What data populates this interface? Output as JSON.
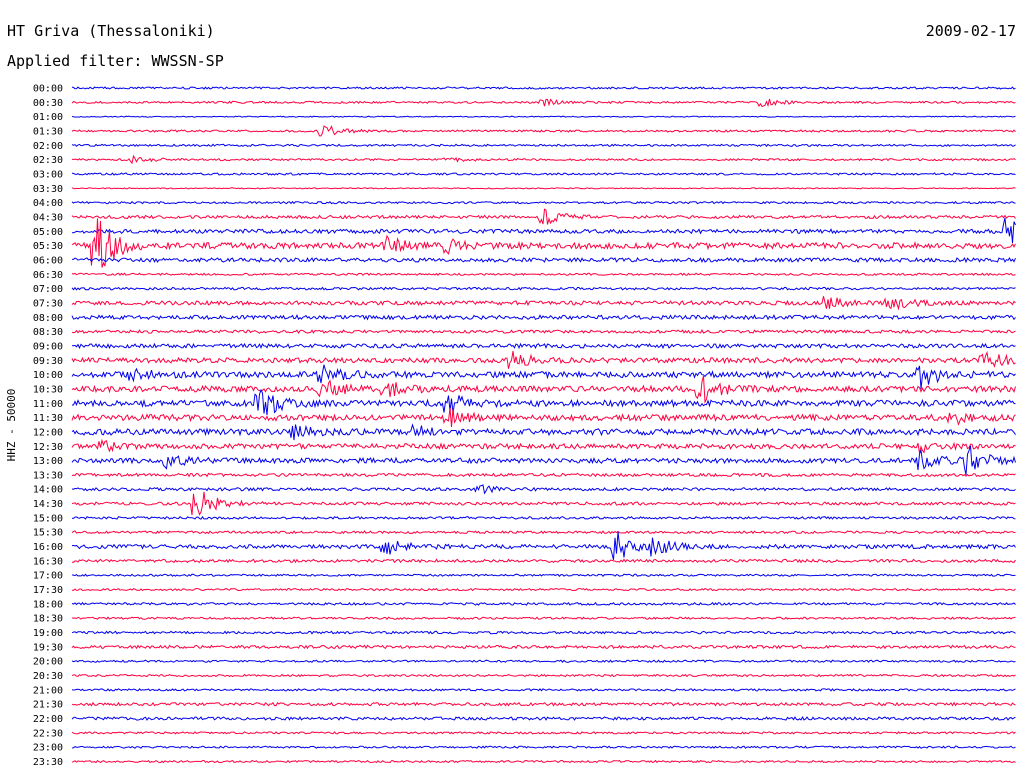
{
  "header": {
    "station": "HT Griva (Thessaloniki)",
    "date": "2009-02-17",
    "filter": "Applied filter: WWSSN-SP"
  },
  "chart_data": {
    "type": "line",
    "ylabel": "HHZ - 50000",
    "trace_colors": [
      "#0000ee",
      "#ff0040"
    ],
    "row_labels": [
      "00:00",
      "00:30",
      "01:00",
      "01:30",
      "02:00",
      "02:30",
      "03:00",
      "03:30",
      "04:00",
      "04:30",
      "05:00",
      "05:30",
      "06:00",
      "06:30",
      "07:00",
      "07:30",
      "08:00",
      "08:30",
      "09:00",
      "09:30",
      "10:00",
      "10:30",
      "11:00",
      "11:30",
      "12:00",
      "12:30",
      "13:00",
      "13:30",
      "14:00",
      "14:30",
      "15:00",
      "15:30",
      "16:00",
      "16:30",
      "17:00",
      "17:30",
      "18:00",
      "18:30",
      "19:00",
      "19:30",
      "20:00",
      "20:30",
      "21:00",
      "21:30",
      "22:00",
      "22:30",
      "23:00",
      "23:30"
    ],
    "noise_level": [
      1,
      1,
      0.5,
      1,
      1,
      1,
      1,
      0.5,
      1,
      1.5,
      2,
      3,
      2,
      1,
      1.2,
      2,
      2,
      1.5,
      2,
      2.5,
      3,
      3,
      3,
      3,
      3,
      2.5,
      2.5,
      1.5,
      1.5,
      1.5,
      1.2,
      1.2,
      2,
      1.5,
      1,
      1,
      1.2,
      1,
      1.2,
      1.5,
      1,
      1,
      1,
      1.5,
      1.5,
      1,
      1,
      1
    ],
    "events": [
      {
        "row": 1,
        "minute": 15,
        "amplitude": 3
      },
      {
        "row": 1,
        "minute": 22,
        "amplitude": 4
      },
      {
        "row": 3,
        "minute": 8,
        "amplitude": 6
      },
      {
        "row": 5,
        "minute": 2,
        "amplitude": 3
      },
      {
        "row": 5,
        "minute": 12,
        "amplitude": 2
      },
      {
        "row": 9,
        "minute": 15,
        "amplitude": 8
      },
      {
        "row": 10,
        "minute": 29.8,
        "amplitude": 16
      },
      {
        "row": 11,
        "minute": 0.8,
        "amplitude": 30
      },
      {
        "row": 11,
        "minute": 10,
        "amplitude": 8
      },
      {
        "row": 11,
        "minute": 12,
        "amplitude": 6
      },
      {
        "row": 15,
        "minute": 24,
        "amplitude": 6
      },
      {
        "row": 15,
        "minute": 26,
        "amplitude": 8
      },
      {
        "row": 19,
        "minute": 14,
        "amplitude": 8
      },
      {
        "row": 19,
        "minute": 29,
        "amplitude": 9
      },
      {
        "row": 20,
        "minute": 2,
        "amplitude": 5
      },
      {
        "row": 20,
        "minute": 8,
        "amplitude": 8
      },
      {
        "row": 20,
        "minute": 27,
        "amplitude": 12
      },
      {
        "row": 21,
        "minute": 8,
        "amplitude": 8
      },
      {
        "row": 21,
        "minute": 10,
        "amplitude": 7
      },
      {
        "row": 21,
        "minute": 20,
        "amplitude": 13
      },
      {
        "row": 22,
        "minute": 6,
        "amplitude": 16
      },
      {
        "row": 22,
        "minute": 12,
        "amplitude": 10
      },
      {
        "row": 23,
        "minute": 12,
        "amplitude": 8
      },
      {
        "row": 23,
        "minute": 28,
        "amplitude": 6
      },
      {
        "row": 24,
        "minute": 7,
        "amplitude": 6
      },
      {
        "row": 24,
        "minute": 11,
        "amplitude": 6
      },
      {
        "row": 25,
        "minute": 1,
        "amplitude": 4
      },
      {
        "row": 25,
        "minute": 27,
        "amplitude": 5
      },
      {
        "row": 26,
        "minute": 3,
        "amplitude": 6
      },
      {
        "row": 26,
        "minute": 27,
        "amplitude": 12
      },
      {
        "row": 26,
        "minute": 28.5,
        "amplitude": 14
      },
      {
        "row": 28,
        "minute": 13,
        "amplitude": 4
      },
      {
        "row": 29,
        "minute": 4,
        "amplitude": 16
      },
      {
        "row": 32,
        "minute": 10,
        "amplitude": 8
      },
      {
        "row": 32,
        "minute": 17.3,
        "amplitude": 16
      },
      {
        "row": 32,
        "minute": 18.5,
        "amplitude": 8
      }
    ]
  }
}
